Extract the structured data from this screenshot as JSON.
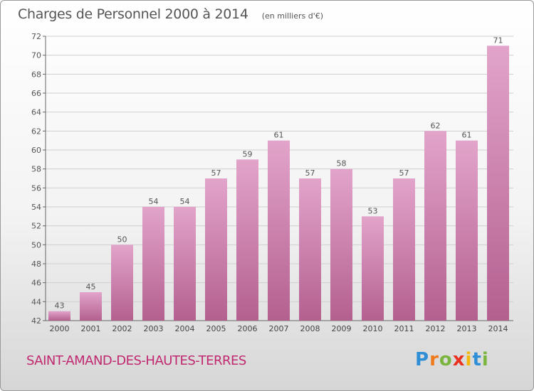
{
  "header": {
    "title": "Charges de Personnel 2000 à 2014",
    "subtitle": "(en milliers d'€)"
  },
  "footer": {
    "commune": "SAINT-AMAND-DES-HAUTES-TERRES",
    "logo": {
      "letters": [
        "P",
        "r",
        "o",
        "x",
        "i",
        "t",
        "i"
      ],
      "colors": [
        "#2f8fd6",
        "#f07b1c",
        "#7ab63e",
        "#e8311f",
        "#f5b70c",
        "#2f8fd6",
        "#7ab63e"
      ]
    }
  },
  "colors": {
    "bar_top": "#e2a4ca",
    "bar_bottom": "#b4608f",
    "text": "#555555",
    "grid": "#cfcfcf"
  },
  "chart_data": {
    "type": "bar",
    "categories": [
      "2000",
      "2001",
      "2002",
      "2003",
      "2004",
      "2005",
      "2006",
      "2007",
      "2008",
      "2009",
      "2010",
      "2011",
      "2012",
      "2013",
      "2014"
    ],
    "values": [
      43,
      45,
      50,
      54,
      54,
      57,
      59,
      61,
      57,
      58,
      53,
      57,
      62,
      61,
      71
    ],
    "data_labels": [
      "43",
      "45",
      "50",
      "54",
      "54",
      "57",
      "59",
      "61",
      "57",
      "58",
      "53",
      "57",
      "62",
      "61",
      "71"
    ],
    "ylim": [
      42,
      72
    ],
    "yticks": [
      42,
      44,
      46,
      48,
      50,
      52,
      54,
      56,
      58,
      60,
      62,
      64,
      66,
      68,
      70,
      72
    ],
    "title": "Charges de Personnel 2000 à 2014",
    "xlabel": "",
    "ylabel": "",
    "grid": true,
    "legend": "none"
  }
}
